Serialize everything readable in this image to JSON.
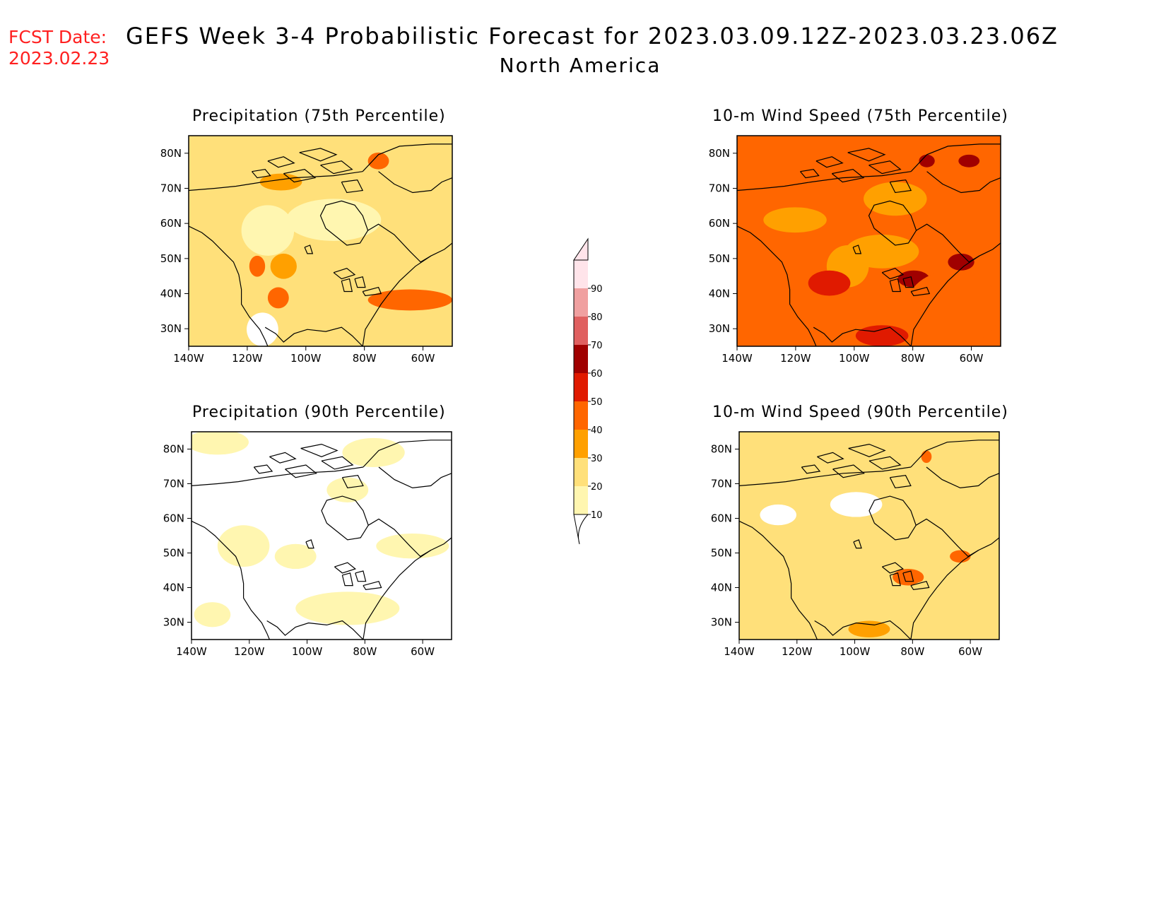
{
  "header": {
    "fcst_label": "FCST Date:",
    "fcst_date": "2023.02.23",
    "title": "GEFS Week 3-4 Probabilistic Forecast for 2023.03.09.12Z-2023.03.23.06Z",
    "region": "North America"
  },
  "axes": {
    "lon_labels": [
      "140W",
      "120W",
      "100W",
      "80W",
      "60W"
    ],
    "lat_labels": [
      "80N",
      "70N",
      "60N",
      "50N",
      "40N",
      "30N"
    ]
  },
  "panels": [
    {
      "id": "precip75",
      "title": "Precipitation (75th Percentile)",
      "base_level": 20
    },
    {
      "id": "wind75",
      "title": "10-m Wind Speed (75th Percentile)",
      "base_level": 40
    },
    {
      "id": "precip90",
      "title": "Precipitation (90th Percentile)",
      "base_level": 0
    },
    {
      "id": "wind90",
      "title": "10-m Wind Speed (90th Percentile)",
      "base_level": 20
    }
  ],
  "colorbar": {
    "levels": [
      "10",
      "20",
      "30",
      "40",
      "50",
      "60",
      "70",
      "80",
      "90"
    ],
    "colors": {
      "0": "#ffffff",
      "10": "#fff6b0",
      "20": "#ffe07a",
      "30": "#ffa000",
      "40": "#ff6600",
      "50": "#e01a00",
      "60": "#a00000",
      "70": "#e06060",
      "80": "#f0a0a0",
      "90": "#ffe4ea"
    }
  }
}
